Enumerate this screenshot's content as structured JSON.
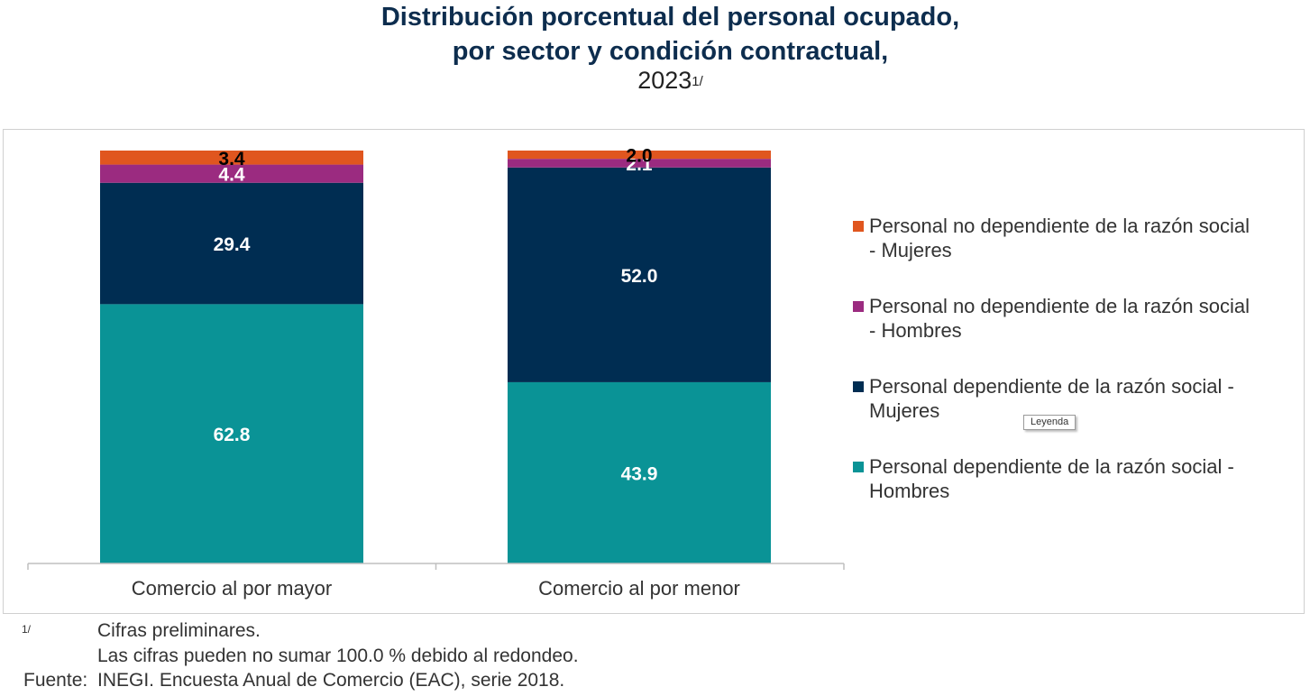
{
  "header": {
    "title_line1": "Distribución porcentual del personal ocupado,",
    "title_line2": "por sector y condición contractual,",
    "year": "2023",
    "year_note": "1/"
  },
  "chart_data": {
    "type": "bar",
    "stacked": true,
    "categories": [
      "Comercio al por mayor",
      "Comercio al por menor"
    ],
    "series": [
      {
        "name": "Personal dependiente de la razón social - Hombres",
        "values": [
          62.8,
          43.9
        ],
        "color": "#0a9396",
        "label_color": "#ffffff"
      },
      {
        "name": "Personal dependiente de la razón social - Mujeres",
        "values": [
          29.4,
          52.0
        ],
        "color": "#002d52",
        "label_color": "#ffffff"
      },
      {
        "name": "Personal no dependiente de la razón social - Hombres",
        "values": [
          4.4,
          2.1
        ],
        "color": "#9b2b80",
        "label_color": "#ffffff"
      },
      {
        "name": "Personal no dependiente de la razón social - Mujeres",
        "values": [
          3.4,
          2.0
        ],
        "color": "#e0561f",
        "label_color": "#000000"
      }
    ],
    "ylim": [
      0,
      100
    ],
    "grid": false,
    "legend_position": "right"
  },
  "legend": {
    "items": [
      {
        "label": "Personal no dependiente de la razón social - Mujeres",
        "color": "#e0561f"
      },
      {
        "label": "Personal no dependiente de la razón social - Hombres",
        "color": "#9b2b80"
      },
      {
        "label": "Personal dependiente de la razón social - Mujeres",
        "color": "#002d52"
      },
      {
        "label": "Personal dependiente de la razón social - Hombres",
        "color": "#0a9396"
      }
    ]
  },
  "tooltip": {
    "text": "Leyenda"
  },
  "footnotes": {
    "mark": "1/",
    "line1": "Cifras preliminares.",
    "line2": "Las cifras pueden no sumar 100.0 % debido al redondeo.",
    "source_label": "Fuente:",
    "source_text": "INEGI. Encuesta Anual de Comercio (EAC), serie 2018."
  }
}
